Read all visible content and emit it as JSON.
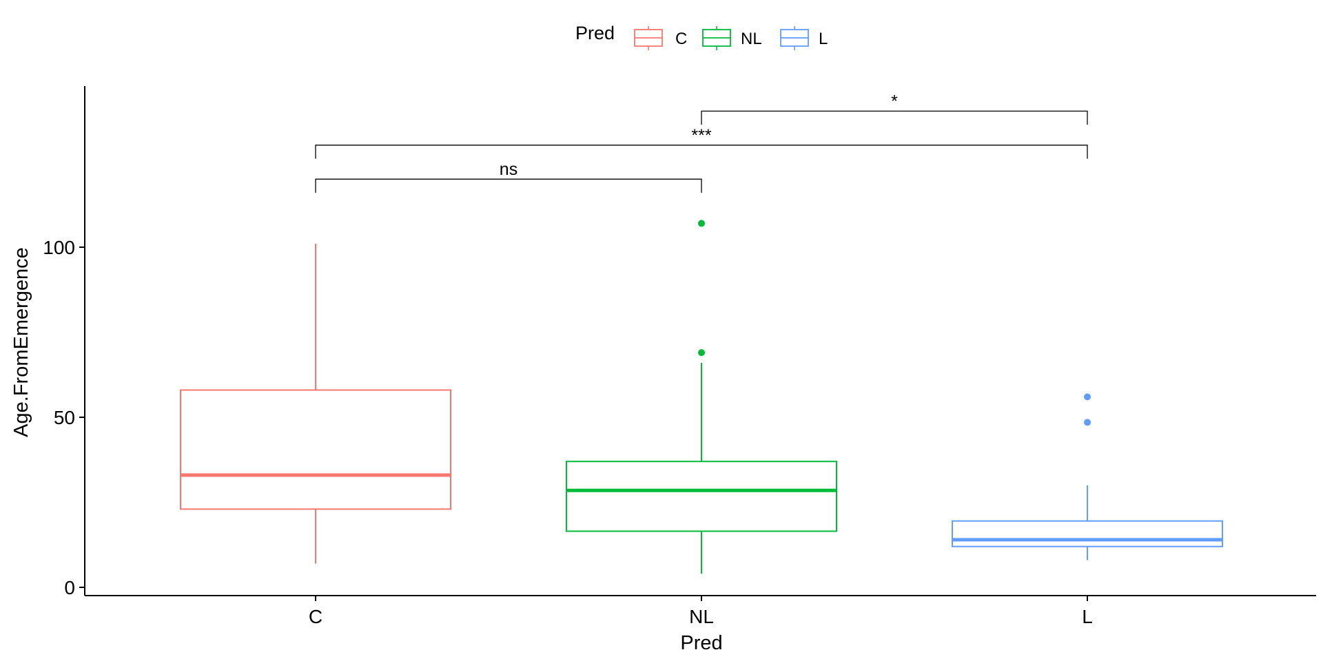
{
  "chart_data": {
    "type": "box",
    "xlabel": "Pred",
    "ylabel": "Age.FromEmergence",
    "categories": [
      "C",
      "NL",
      "L"
    ],
    "ylim": [
      -2,
      147
    ],
    "yticks": [
      0,
      50,
      100
    ],
    "grid": false,
    "legend": {
      "title": "Pred",
      "position": "top",
      "entries": [
        "C",
        "NL",
        "L"
      ]
    },
    "series": [
      {
        "category": "C",
        "color": "#F8766D",
        "min": 7,
        "q1": 23,
        "median": 33,
        "q3": 58,
        "max": 101,
        "outliers": []
      },
      {
        "category": "NL",
        "color": "#00BA38",
        "min": 4,
        "q1": 16.5,
        "median": 28.5,
        "q3": 37,
        "max": 66,
        "outliers": [
          69,
          107
        ]
      },
      {
        "category": "L",
        "color": "#619CFF",
        "min": 8,
        "q1": 12,
        "median": 14,
        "q3": 19.5,
        "max": 30,
        "outliers": [
          48.5,
          56
        ]
      }
    ],
    "comparisons": [
      {
        "from": "C",
        "to": "NL",
        "label": "ns",
        "y": 120,
        "tip_length": 4
      },
      {
        "from": "C",
        "to": "L",
        "label": "***",
        "y": 130,
        "tip_length": 4
      },
      {
        "from": "NL",
        "to": "L",
        "label": "*",
        "y": 140,
        "tip_length": 4
      }
    ]
  }
}
